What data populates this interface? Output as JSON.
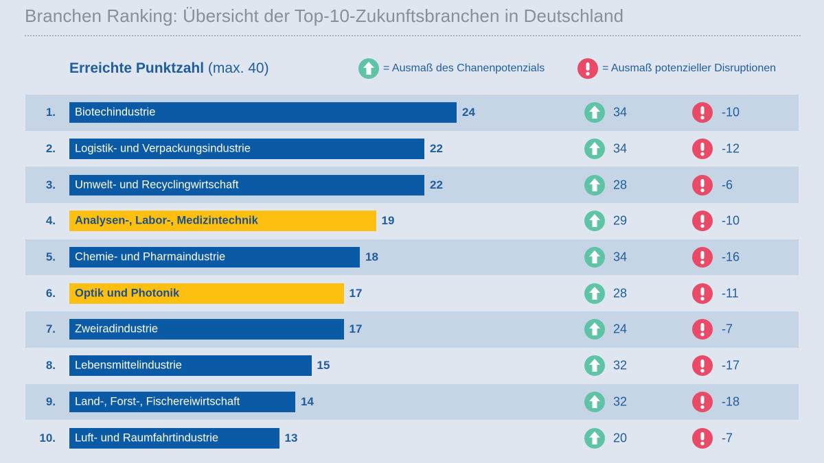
{
  "header": {
    "title": "Branchen Ranking: Übersicht der Top-10-Zukunftsbranchen in Deutschland",
    "subtitle_strong": "Erreichte Punktzahl",
    "subtitle_rest": " (max. 40)"
  },
  "legend": {
    "potential_label": "= Ausmaß des Chanenpotenzials",
    "disruption_label": "= Ausmaß potenzieller Disruptionen",
    "potential_icon": "arrow-up-icon",
    "disruption_icon": "exclamation-icon"
  },
  "colors": {
    "bar_default": "#0a5aa6",
    "bar_highlight": "#fdc010",
    "potential_icon": "#5fc4a6",
    "disruption_icon": "#e84a68",
    "row_shade": "#c6d5e6",
    "background": "#dfe6ef"
  },
  "chart_data": {
    "type": "bar",
    "orientation": "horizontal",
    "max_score": 40,
    "categories": [
      "Biotechindustrie",
      "Logistik- und Verpackungsindustrie",
      "Umwelt- und Recyclingwirtschaft",
      "Analysen-, Labor-, Medizintechnik",
      "Chemie- und Pharmaindustrie",
      "Optik und Photonik",
      "Zweiradindustrie",
      "Lebensmittelindustrie",
      "Land-, Forst-, Fischereiwirtschaft",
      "Luft- und Raumfahrtindustrie"
    ],
    "rows": [
      {
        "rank": "1.",
        "label": "Biotechindustrie",
        "score": 24,
        "potential": "34",
        "disruption": "-10",
        "highlight": false
      },
      {
        "rank": "2.",
        "label": "Logistik- und Verpackungsindustrie",
        "score": 22,
        "potential": "34",
        "disruption": "-12",
        "highlight": false
      },
      {
        "rank": "3.",
        "label": "Umwelt- und Recyclingwirtschaft",
        "score": 22,
        "potential": "28",
        "disruption": "-6",
        "highlight": false
      },
      {
        "rank": "4.",
        "label": "Analysen-, Labor-, Medizintechnik",
        "score": 19,
        "potential": "29",
        "disruption": "-10",
        "highlight": true
      },
      {
        "rank": "5.",
        "label": "Chemie- und Pharmaindustrie",
        "score": 18,
        "potential": "34",
        "disruption": "-16",
        "highlight": false
      },
      {
        "rank": "6.",
        "label": "Optik und Photonik",
        "score": 17,
        "potential": "28",
        "disruption": "-11",
        "highlight": true
      },
      {
        "rank": "7.",
        "label": "Zweiradindustrie",
        "score": 17,
        "potential": "24",
        "disruption": "-7",
        "highlight": false
      },
      {
        "rank": "8.",
        "label": "Lebensmittelindustrie",
        "score": 15,
        "potential": "32",
        "disruption": "-17",
        "highlight": false
      },
      {
        "rank": "9.",
        "label": "Land-, Forst-, Fischereiwirtschaft",
        "score": 14,
        "potential": "32",
        "disruption": "-18",
        "highlight": false
      },
      {
        "rank": "10.",
        "label": "Luft- und Raumfahrtindustrie",
        "score": 13,
        "potential": "20",
        "disruption": "-7",
        "highlight": false
      }
    ]
  }
}
